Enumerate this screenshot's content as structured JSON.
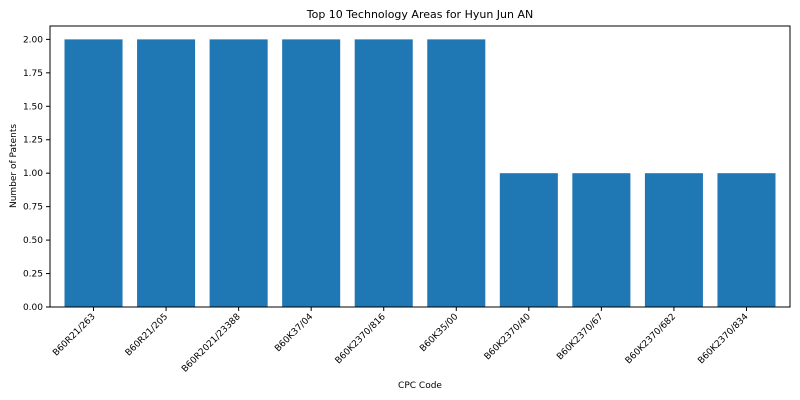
{
  "chart_data": {
    "type": "bar",
    "title": "Top 10 Technology Areas for Hyun Jun AN",
    "xlabel": "CPC Code",
    "ylabel": "Number of Patents",
    "categories": [
      "B60R21/263",
      "B60R21/205",
      "B60R2021/23388",
      "B60K37/04",
      "B60K2370/816",
      "B60K35/00",
      "B60K2370/40",
      "B60K2370/67",
      "B60K2370/682",
      "B60K2370/834"
    ],
    "values": [
      2,
      2,
      2,
      2,
      2,
      2,
      1,
      1,
      1,
      1
    ],
    "ylim": [
      0,
      2.1
    ],
    "yticks": [
      "0.00",
      "0.25",
      "0.50",
      "0.75",
      "1.00",
      "1.25",
      "1.50",
      "1.75",
      "2.00"
    ],
    "bar_color": "#1f77b4",
    "grid": false,
    "legend": "none"
  }
}
